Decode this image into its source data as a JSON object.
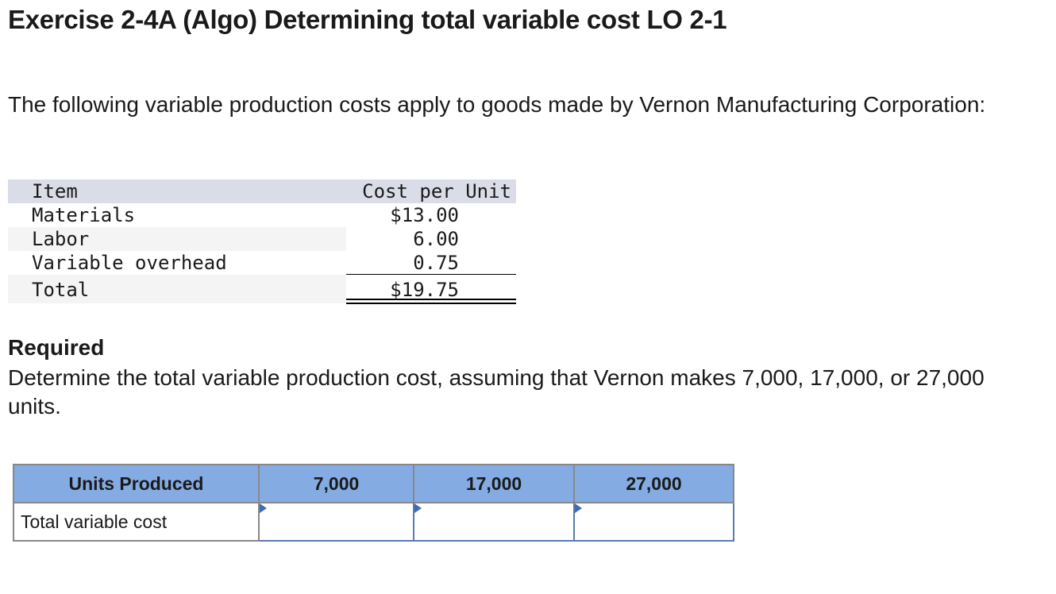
{
  "title": "Exercise 2-4A (Algo) Determining total variable cost LO 2-1",
  "intro": "The following variable production costs apply to goods made by Vernon Manufacturing Corporation:",
  "cost_table": {
    "header": {
      "item": "Item",
      "cost": "Cost per Unit"
    },
    "rows": [
      {
        "item": "Materials",
        "cost": "$13.00"
      },
      {
        "item": "Labor",
        "cost": "6.00"
      },
      {
        "item": "Variable overhead",
        "cost": "0.75"
      }
    ],
    "total": {
      "item": "Total",
      "cost": "$19.75"
    }
  },
  "required": {
    "heading": "Required",
    "text": "Determine the total variable production cost, assuming that Vernon makes 7,000, 17,000, or 27,000 units."
  },
  "answer_table": {
    "header_label": "Units Produced",
    "columns": [
      "7,000",
      "17,000",
      "27,000"
    ],
    "row_label": "Total variable cost",
    "inputs": [
      "",
      "",
      ""
    ]
  }
}
